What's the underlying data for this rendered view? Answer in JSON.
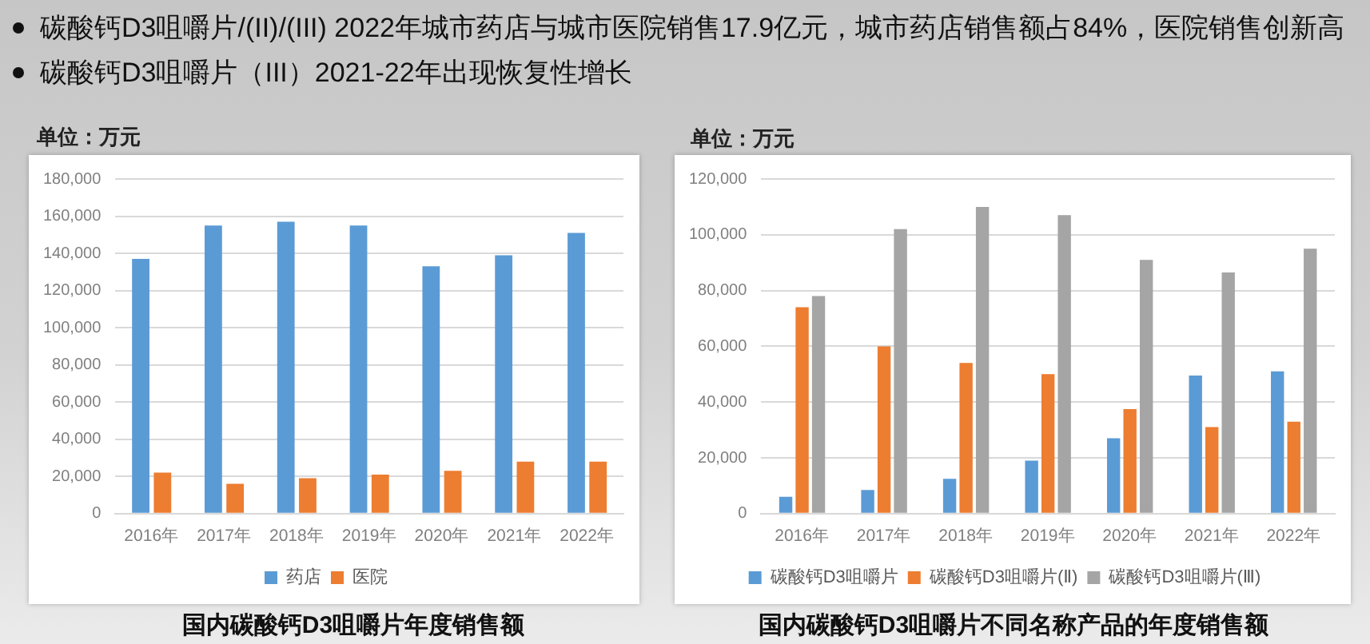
{
  "chart_data": [
    {
      "type": "other",
      "annotations": [
        "碳酸钙D3咀嚼片/(II)/(III) 2022年城市药店与城市医院销售17.9亿元，城市药店销售额占84%，医院销售创新高",
        "碳酸钙D3咀嚼片（III）2021-22年出现恢复性增长"
      ]
    },
    {
      "type": "bar",
      "title": "国内碳酸钙D3咀嚼片年度销售额",
      "ylabel": "单位：万元",
      "categories": [
        "2016年",
        "2017年",
        "2018年",
        "2019年",
        "2020年",
        "2021年",
        "2022年"
      ],
      "series": [
        {
          "name": "药店",
          "color": "#5b9bd5",
          "values": [
            137000,
            155000,
            157000,
            155000,
            133000,
            139000,
            151000
          ]
        },
        {
          "name": "医院",
          "color": "#ed7d31",
          "values": [
            22000,
            16000,
            19000,
            21000,
            23000,
            28000,
            28000
          ]
        }
      ],
      "ylim": [
        0,
        180000
      ],
      "yticks": [
        0,
        {
          "value": 20000,
          "label": "20,000"
        },
        {
          "value": 40000,
          "label": "40,000"
        },
        {
          "value": 60000,
          "label": "60,000"
        },
        {
          "value": 80000,
          "label": "80,000"
        },
        {
          "value": 100000,
          "label": "100,000"
        },
        {
          "value": 120000,
          "label": "120,000"
        },
        {
          "value": 140000,
          "label": "140,000"
        },
        {
          "value": 160000,
          "label": "160,000"
        },
        {
          "value": 180000,
          "label": "180,000"
        }
      ],
      "grid": "y",
      "legend": "bottom"
    },
    {
      "type": "bar",
      "title": "国内碳酸钙D3咀嚼片不同名称产品的年度销售额",
      "ylabel": "单位：万元",
      "categories": [
        "2016年",
        "2017年",
        "2018年",
        "2019年",
        "2020年",
        "2021年",
        "2022年"
      ],
      "series": [
        {
          "name": "碳酸钙D3咀嚼片",
          "color": "#5b9bd5",
          "values": [
            6000,
            8500,
            12500,
            19000,
            27000,
            49500,
            51000
          ]
        },
        {
          "name": "碳酸钙D3咀嚼片(Ⅱ)",
          "color": "#ed7d31",
          "values": [
            74000,
            60000,
            54000,
            50000,
            37500,
            31000,
            33000
          ]
        },
        {
          "name": "碳酸钙D3咀嚼片(Ⅲ)",
          "color": "#a5a5a5",
          "values": [
            78000,
            102000,
            110000,
            107000,
            91000,
            86500,
            95000
          ]
        }
      ],
      "ylim": [
        0,
        120000
      ],
      "yticks": [
        0,
        {
          "value": 20000,
          "label": "20,000"
        },
        {
          "value": 40000,
          "label": "40,000"
        },
        {
          "value": 60000,
          "label": "60,000"
        },
        {
          "value": 80000,
          "label": "80,000"
        },
        {
          "value": 100000,
          "label": "100,000"
        },
        {
          "value": 120000,
          "label": "120,000"
        }
      ],
      "grid": "y",
      "legend": "bottom"
    }
  ]
}
